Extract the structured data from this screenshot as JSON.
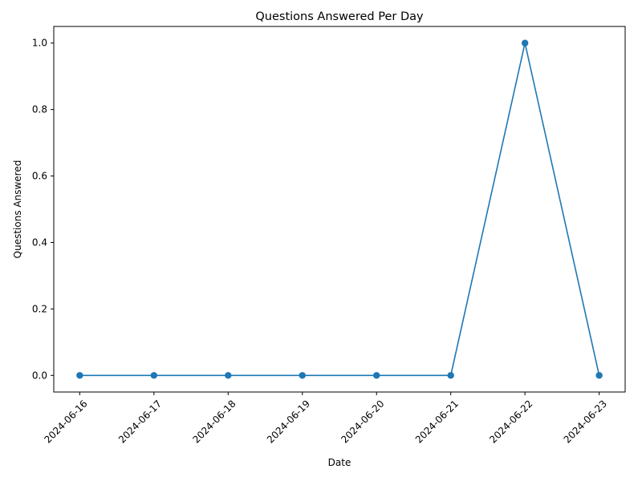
{
  "chart_data": {
    "type": "line",
    "title": "Questions Answered Per Day",
    "xlabel": "Date",
    "ylabel": "Questions Answered",
    "x": [
      "2024-06-16",
      "2024-06-17",
      "2024-06-18",
      "2024-06-19",
      "2024-06-20",
      "2024-06-21",
      "2024-06-22",
      "2024-06-23"
    ],
    "series": [
      {
        "values": [
          0,
          0,
          0,
          0,
          0,
          0,
          1,
          0
        ],
        "color": "#1f77b4",
        "marker": "circle"
      }
    ],
    "yticks": [
      "0.0",
      "0.2",
      "0.4",
      "0.6",
      "0.8",
      "1.0"
    ],
    "ylim": [
      -0.05,
      1.05
    ],
    "grid": false,
    "legend": "none"
  }
}
